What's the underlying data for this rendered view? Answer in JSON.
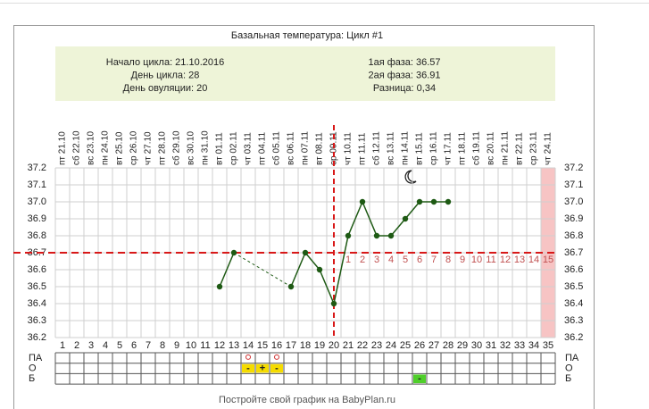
{
  "chart_data": {
    "type": "line",
    "title": "Базальная температура: Цикл #1",
    "info_left": [
      "Начало цикла: 21.10.2016",
      "День цикла: 28",
      "День овуляции: 20"
    ],
    "info_right": [
      "1ая фаза: 36.57",
      "2ая фаза: 36.91",
      "Разница: 0,34"
    ],
    "categories": [
      "пт 21.10",
      "сб 22.10",
      "вс 23.10",
      "пн 24.10",
      "вт 25.10",
      "ср 26.10",
      "чт 27.10",
      "пт 28.10",
      "сб 29.10",
      "вс 30.10",
      "пн 31.10",
      "вт 01.11",
      "ср 02.11",
      "чт 03.11",
      "пт 04.11",
      "сб 05.11",
      "вс 06.11",
      "пн 07.11",
      "вт 08.11",
      "ср 09.11",
      "чт 10.11",
      "пт 11.11",
      "сб 12.11",
      "вс 13.11",
      "пн 14.11",
      "вт 15.11",
      "ср 16.11",
      "чт 17.11",
      "пт 18.11",
      "сб 19.11",
      "вс 20.11",
      "пн 21.11",
      "вт 22.11",
      "ср 23.11",
      "чт 24.11"
    ],
    "x": [
      1,
      2,
      3,
      4,
      5,
      6,
      7,
      8,
      9,
      10,
      11,
      12,
      13,
      14,
      15,
      16,
      17,
      18,
      19,
      20,
      21,
      22,
      23,
      24,
      25,
      26,
      27,
      28,
      29,
      30,
      31,
      32,
      33,
      34,
      35
    ],
    "xlim": [
      0.5,
      35.5
    ],
    "values": [
      null,
      null,
      null,
      null,
      null,
      null,
      null,
      null,
      null,
      null,
      null,
      36.5,
      36.7,
      null,
      null,
      null,
      36.5,
      36.7,
      36.6,
      36.4,
      36.8,
      37.0,
      36.8,
      36.8,
      36.9,
      37.0,
      37.0,
      37.0,
      null,
      null,
      null,
      null,
      null,
      null,
      null
    ],
    "color": "#1e5a14",
    "ylim": [
      36.2,
      37.2
    ],
    "yticks": [
      36.2,
      36.3,
      36.4,
      36.5,
      36.6,
      36.7,
      36.8,
      36.9,
      {
        "value": 37.0,
        "label": "37.0"
      },
      37.1,
      37.2
    ],
    "grid": true,
    "coverline": 36.7,
    "ovulation_day": 20,
    "phase2_labels": [
      1,
      2,
      3,
      4,
      5,
      6,
      7,
      8,
      9,
      10,
      11,
      12,
      13,
      14,
      15
    ],
    "highlight_day": 35,
    "rows": [
      {
        "label": "ПА",
        "marks": [
          {
            "day": 14,
            "symbol": "circle"
          },
          {
            "day": 16,
            "symbol": "circle"
          }
        ]
      },
      {
        "label": "О",
        "marks": [
          {
            "day": 14,
            "text": "-",
            "color": "#f5dc00"
          },
          {
            "day": 15,
            "text": "+",
            "color": "#f5dc00"
          },
          {
            "day": 16,
            "text": "-",
            "color": "#f5dc00"
          }
        ]
      },
      {
        "label": "Б",
        "marks": [
          {
            "day": 26,
            "text": "-",
            "color": "#4fcf2a"
          }
        ]
      }
    ],
    "footer": "Постройте свой график на BabyPlan.ru"
  }
}
